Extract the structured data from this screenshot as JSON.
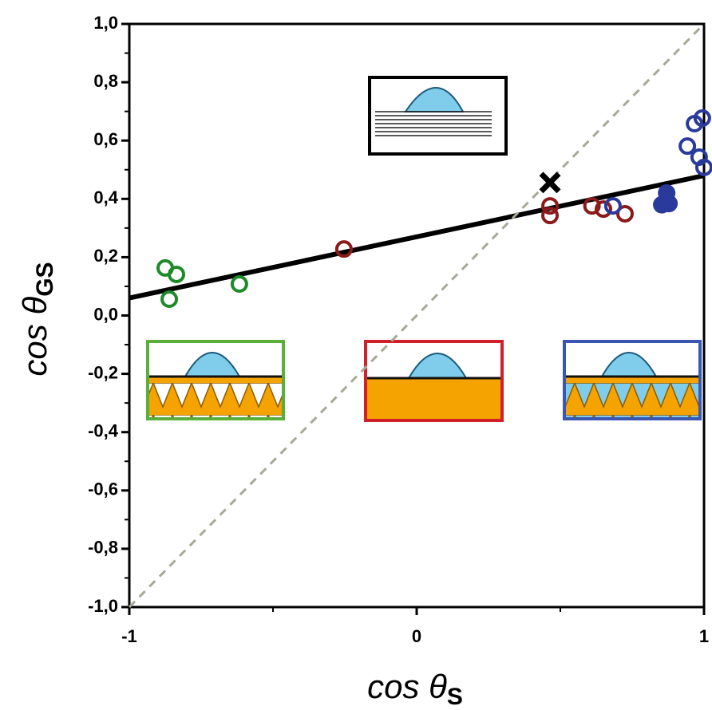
{
  "chart_data": {
    "type": "scatter",
    "xlabel": {
      "text": "cos θ",
      "sub": "S"
    },
    "ylabel": {
      "text": "cos θ",
      "sub": "GS"
    },
    "xlim": [
      -1,
      1
    ],
    "ylim": [
      -1,
      1
    ],
    "xticks": [
      -1,
      0,
      1
    ],
    "xminor": [
      -0.5,
      0.5
    ],
    "yticks": [
      {
        "value": -1,
        "label": "-1,0"
      },
      {
        "value": -0.8,
        "label": "-0,8"
      },
      {
        "value": -0.6,
        "label": "-0,6"
      },
      {
        "value": -0.4,
        "label": "-0,4"
      },
      {
        "value": -0.2,
        "label": "-0,2"
      },
      {
        "value": 0,
        "label": "0,0"
      },
      {
        "value": 0.2,
        "label": "0,2"
      },
      {
        "value": 0.4,
        "label": "0,4"
      },
      {
        "value": 0.6,
        "label": "0,6"
      },
      {
        "value": 0.8,
        "label": "0,8"
      },
      {
        "value": 1,
        "label": "1,0"
      }
    ],
    "yminor": [
      -0.9,
      -0.7,
      -0.5,
      -0.3,
      -0.1,
      0.1,
      0.3,
      0.5,
      0.7,
      0.9
    ],
    "series": [
      {
        "color": "#1e8a2a",
        "marker": "open-circle",
        "x": [
          -0.875,
          -0.836,
          -0.861,
          -0.617
        ],
        "y": [
          0.163,
          0.141,
          0.056,
          0.108
        ]
      },
      {
        "color": "#8b1a1a",
        "marker": "open-circle",
        "x": [
          -0.253,
          0.464,
          0.464,
          0.61,
          0.65,
          0.725
        ],
        "y": [
          0.228,
          0.376,
          0.343,
          0.376,
          0.365,
          0.349
        ]
      },
      {
        "color": "#2a3a9c",
        "marker": "open-circle",
        "x": [
          0.683,
          0.942,
          0.967,
          0.994,
          0.983,
          1.0
        ],
        "y": [
          0.376,
          0.581,
          0.658,
          0.677,
          0.543,
          0.508
        ]
      },
      {
        "color": "#2a3a9c",
        "marker": "filled-circle",
        "x": [
          0.87,
          0.878,
          0.853
        ],
        "y": [
          0.42,
          0.384,
          0.38
        ]
      },
      {
        "color": "#000000",
        "marker": "cross",
        "x": [
          0.464
        ],
        "y": [
          0.456
        ]
      }
    ],
    "lines": [
      {
        "color": "#000000",
        "style": "solid",
        "x": [
          -1,
          1
        ],
        "y": [
          0.06,
          0.48
        ]
      },
      {
        "color": "#a8a898",
        "style": "dashed",
        "x": [
          -1,
          1
        ],
        "y": [
          -1,
          1
        ]
      }
    ]
  }
}
